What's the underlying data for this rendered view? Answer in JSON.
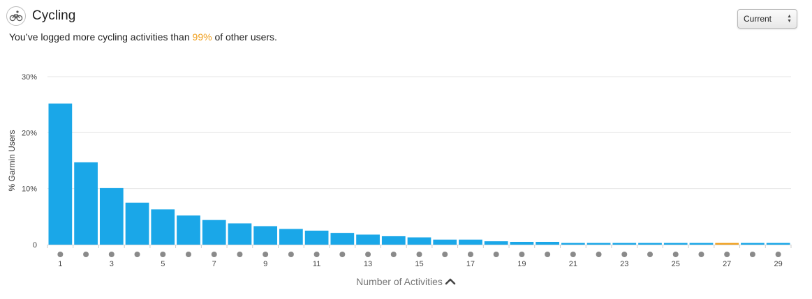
{
  "header": {
    "title": "Cycling",
    "icon": "cycling-icon",
    "subtitle_prefix": "You’ve logged more cycling activities than ",
    "subtitle_highlight": "99%",
    "subtitle_suffix": " of other users.",
    "highlight_color": "#f0a020"
  },
  "period_select": {
    "value": "Current"
  },
  "chart_data": {
    "type": "bar",
    "xlabel": "Number of Activities",
    "ylabel": "% Garmin Users",
    "ylim": [
      0,
      30
    ],
    "y_ticks": [
      {
        "value": 0,
        "label": "0"
      },
      {
        "value": 10,
        "label": "10%"
      },
      {
        "value": 20,
        "label": "20%"
      },
      {
        "value": 30,
        "label": "30%"
      }
    ],
    "x_tick_labels": [
      "1",
      "3",
      "5",
      "7",
      "9",
      "11",
      "13",
      "15",
      "17",
      "19",
      "21",
      "23",
      "25",
      "27",
      "29"
    ],
    "grid": true,
    "bar_color": "#1aa7e8",
    "highlight_color": "#f0a020",
    "highlight_category": "27",
    "categories": [
      "1",
      "2",
      "3",
      "4",
      "5",
      "6",
      "7",
      "8",
      "9",
      "10",
      "11",
      "12",
      "13",
      "14",
      "15",
      "16",
      "17",
      "18",
      "19",
      "20",
      "21",
      "22",
      "23",
      "24",
      "25",
      "26",
      "27",
      "28",
      "29"
    ],
    "values": [
      25.2,
      14.7,
      10.1,
      7.5,
      6.3,
      5.2,
      4.4,
      3.8,
      3.3,
      2.8,
      2.5,
      2.1,
      1.8,
      1.5,
      1.3,
      0.9,
      0.9,
      0.6,
      0.5,
      0.5,
      0.3,
      0.3,
      0.3,
      0.3,
      0.3,
      0.3,
      0.3,
      0.3,
      0.3
    ]
  }
}
